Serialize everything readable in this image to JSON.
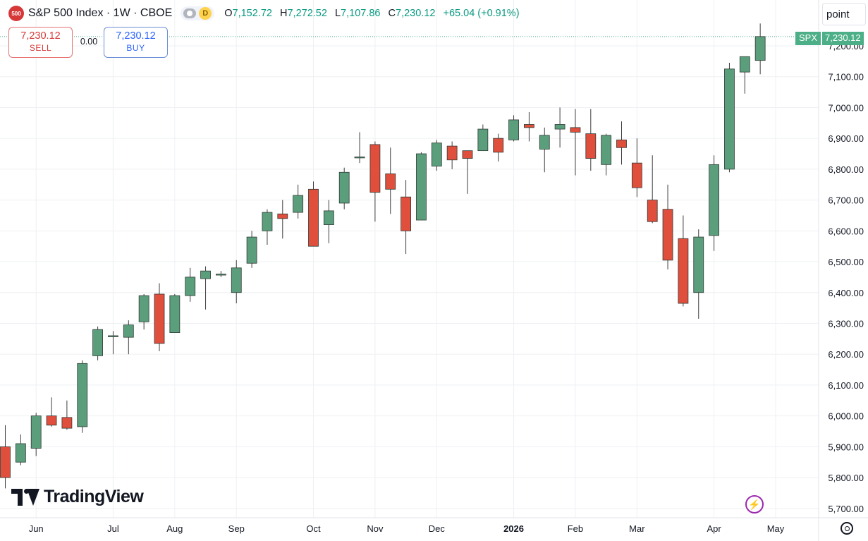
{
  "header": {
    "symbol_badge": "500",
    "title": "S&P 500 Index · 1W · CBOE",
    "data_pill": "D",
    "ohlc": {
      "o_label": "O",
      "o_value": "7,152.72",
      "h_label": "H",
      "h_value": "7,272.52",
      "l_label": "L",
      "l_value": "7,107.86",
      "c_label": "C",
      "c_value": "7,230.12",
      "change": "+65.04 (+0.91%)"
    }
  },
  "trade": {
    "sell_price": "7,230.12",
    "sell_label": "SELL",
    "spread": "0.00",
    "buy_price": "7,230.12",
    "buy_label": "BUY"
  },
  "axis_unit": "point",
  "price_tag": {
    "symbol": "SPX",
    "price": "7,230.12"
  },
  "logo_text": "TradingView",
  "icons": [
    "symbol-badge",
    "visibility-icon",
    "bolt-icon",
    "settings-icon",
    "tradingview-logo"
  ],
  "colors": {
    "up": "#5b9e7c",
    "down": "#e04e3c",
    "wick": "#3d3d3d",
    "price_line": "#4caf87",
    "grid": "#eef0f4"
  },
  "chart_data": {
    "type": "candlestick",
    "title": "S&P 500 Index",
    "interval": "1W",
    "ylim": [
      5670,
      7300
    ],
    "y_ticks": [
      5700,
      5800,
      5900,
      6000,
      6100,
      6200,
      6300,
      6400,
      6500,
      6600,
      6700,
      6800,
      6900,
      7000,
      7100,
      7200
    ],
    "y_tick_labels": [
      "5,700.00",
      "5,800.00",
      "5,900.00",
      "6,000.00",
      "6,100.00",
      "6,200.00",
      "6,300.00",
      "6,400.00",
      "6,500.00",
      "6,600.00",
      "6,700.00",
      "6,800.00",
      "6,900.00",
      "7,000.00",
      "7,100.00",
      "7,200.00"
    ],
    "x_ticks": [
      {
        "label": "Jun",
        "index": 2
      },
      {
        "label": "Jul",
        "index": 7
      },
      {
        "label": "Aug",
        "index": 11
      },
      {
        "label": "Sep",
        "index": 15
      },
      {
        "label": "Oct",
        "index": 20
      },
      {
        "label": "Nov",
        "index": 24
      },
      {
        "label": "Dec",
        "index": 28
      },
      {
        "label": "2026",
        "index": 33
      },
      {
        "label": "Feb",
        "index": 37
      },
      {
        "label": "Mar",
        "index": 41
      },
      {
        "label": "Apr",
        "index": 46
      },
      {
        "label": "May",
        "index": 50
      }
    ],
    "candles": [
      {
        "o": 5900,
        "h": 5970,
        "l": 5765,
        "c": 5800
      },
      {
        "o": 5850,
        "h": 5940,
        "l": 5840,
        "c": 5910
      },
      {
        "o": 5895,
        "h": 6010,
        "l": 5870,
        "c": 6000
      },
      {
        "o": 6000,
        "h": 6060,
        "l": 5965,
        "c": 5970
      },
      {
        "o": 5995,
        "h": 6050,
        "l": 5955,
        "c": 5960
      },
      {
        "o": 5965,
        "h": 6180,
        "l": 5945,
        "c": 6170
      },
      {
        "o": 6195,
        "h": 6290,
        "l": 6180,
        "c": 6280
      },
      {
        "o": 6260,
        "h": 6275,
        "l": 6200,
        "c": 6260
      },
      {
        "o": 6255,
        "h": 6310,
        "l": 6200,
        "c": 6295
      },
      {
        "o": 6305,
        "h": 6395,
        "l": 6280,
        "c": 6390
      },
      {
        "o": 6395,
        "h": 6430,
        "l": 6210,
        "c": 6235
      },
      {
        "o": 6270,
        "h": 6395,
        "l": 6270,
        "c": 6390
      },
      {
        "o": 6390,
        "h": 6480,
        "l": 6370,
        "c": 6450
      },
      {
        "o": 6445,
        "h": 6485,
        "l": 6345,
        "c": 6470
      },
      {
        "o": 6460,
        "h": 6470,
        "l": 6450,
        "c": 6460
      },
      {
        "o": 6400,
        "h": 6505,
        "l": 6365,
        "c": 6480
      },
      {
        "o": 6495,
        "h": 6600,
        "l": 6480,
        "c": 6580
      },
      {
        "o": 6600,
        "h": 6670,
        "l": 6555,
        "c": 6660
      },
      {
        "o": 6655,
        "h": 6700,
        "l": 6575,
        "c": 6640
      },
      {
        "o": 6660,
        "h": 6750,
        "l": 6640,
        "c": 6715
      },
      {
        "o": 6735,
        "h": 6760,
        "l": 6550,
        "c": 6550
      },
      {
        "o": 6620,
        "h": 6700,
        "l": 6560,
        "c": 6665
      },
      {
        "o": 6690,
        "h": 6805,
        "l": 6670,
        "c": 6790
      },
      {
        "o": 6840,
        "h": 6920,
        "l": 6820,
        "c": 6840
      },
      {
        "o": 6880,
        "h": 6890,
        "l": 6630,
        "c": 6725
      },
      {
        "o": 6785,
        "h": 6870,
        "l": 6655,
        "c": 6735
      },
      {
        "o": 6710,
        "h": 6765,
        "l": 6525,
        "c": 6600
      },
      {
        "o": 6635,
        "h": 6855,
        "l": 6635,
        "c": 6850
      },
      {
        "o": 6810,
        "h": 6895,
        "l": 6795,
        "c": 6885
      },
      {
        "o": 6875,
        "h": 6890,
        "l": 6800,
        "c": 6830
      },
      {
        "o": 6860,
        "h": 6860,
        "l": 6720,
        "c": 6835
      },
      {
        "o": 6860,
        "h": 6945,
        "l": 6860,
        "c": 6930
      },
      {
        "o": 6900,
        "h": 6915,
        "l": 6825,
        "c": 6855
      },
      {
        "o": 6895,
        "h": 6975,
        "l": 6890,
        "c": 6960
      },
      {
        "o": 6945,
        "h": 6985,
        "l": 6890,
        "c": 6935
      },
      {
        "o": 6865,
        "h": 6935,
        "l": 6790,
        "c": 6910
      },
      {
        "o": 6930,
        "h": 7000,
        "l": 6870,
        "c": 6945
      },
      {
        "o": 6935,
        "h": 6995,
        "l": 6780,
        "c": 6920
      },
      {
        "o": 6915,
        "h": 6995,
        "l": 6795,
        "c": 6835
      },
      {
        "o": 6815,
        "h": 6915,
        "l": 6780,
        "c": 6910
      },
      {
        "o": 6895,
        "h": 6955,
        "l": 6815,
        "c": 6870
      },
      {
        "o": 6820,
        "h": 6900,
        "l": 6710,
        "c": 6740
      },
      {
        "o": 6700,
        "h": 6845,
        "l": 6625,
        "c": 6630
      },
      {
        "o": 6670,
        "h": 6750,
        "l": 6475,
        "c": 6505
      },
      {
        "o": 6575,
        "h": 6650,
        "l": 6355,
        "c": 6365
      },
      {
        "o": 6400,
        "h": 6605,
        "l": 6315,
        "c": 6580
      },
      {
        "o": 6585,
        "h": 6845,
        "l": 6535,
        "c": 6815
      },
      {
        "o": 6800,
        "h": 7145,
        "l": 6790,
        "c": 7125
      },
      {
        "o": 7115,
        "h": 7165,
        "l": 7045,
        "c": 7165
      },
      {
        "o": 7152.72,
        "h": 7272.52,
        "l": 7107.86,
        "c": 7230.12
      }
    ],
    "last_price": 7230.12,
    "grid": true
  }
}
